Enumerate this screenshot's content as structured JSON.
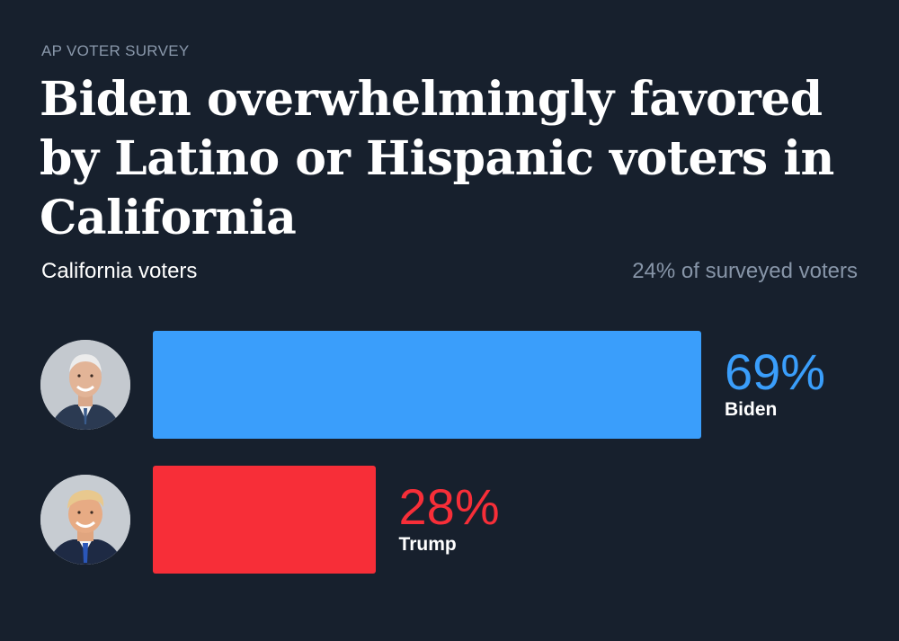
{
  "kicker": "AP VOTER SURVEY",
  "headline": "Biden overwhelmingly favored by Latino or Hispanic voters in California",
  "subtitle": "California voters",
  "share_note": "24% of surveyed voters",
  "colors": {
    "background": "#17202d",
    "biden": "#3a9efb",
    "trump": "#f72e38",
    "muted": "#8795a8"
  },
  "chart_data": {
    "type": "bar",
    "orientation": "horizontal",
    "title": "Biden overwhelmingly favored by Latino or Hispanic voters in California",
    "subtitle": "California voters",
    "categories": [
      "Biden",
      "Trump"
    ],
    "values": [
      69,
      28
    ],
    "value_labels": [
      "69%",
      "28%"
    ],
    "colors": [
      "#3a9efb",
      "#f72e38"
    ],
    "xlim": [
      0,
      100
    ],
    "grid": false
  }
}
